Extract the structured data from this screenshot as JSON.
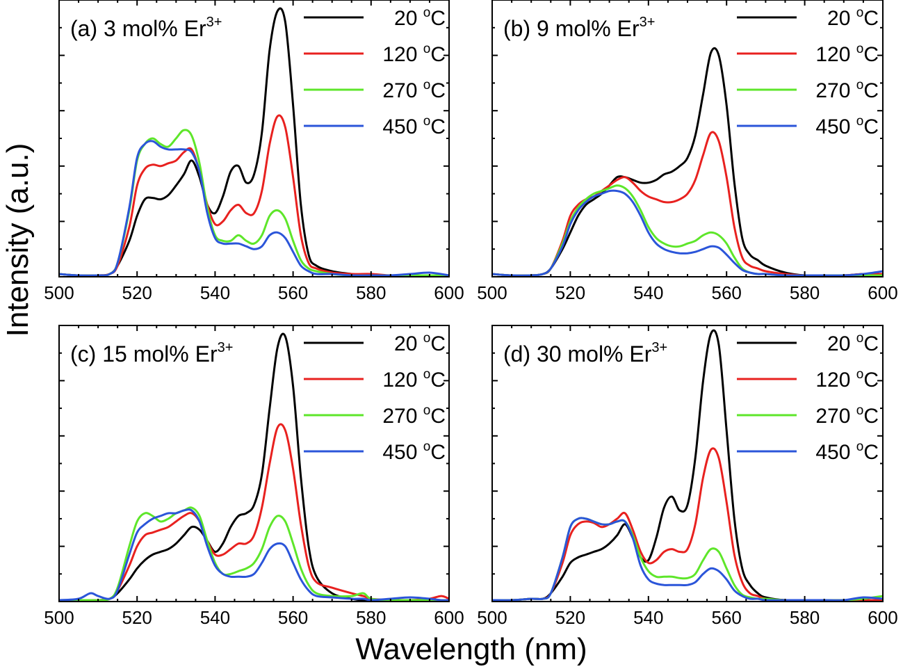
{
  "figure": {
    "xlabel": "Wavelength (nm)",
    "ylabel": "Intensity (a.u.)"
  },
  "series_colors": [
    "#000000",
    "#e8211f",
    "#5ee62a",
    "#2b55d9"
  ],
  "chart_data": [
    {
      "type": "line",
      "title": "(a) 3 mol% Er",
      "title_sup": "3+",
      "xlim": [
        500,
        600
      ],
      "xticks": [
        500,
        520,
        540,
        560,
        580,
        600
      ],
      "x": [
        500,
        505,
        510,
        513,
        515,
        518,
        520,
        522,
        524,
        526,
        528,
        530,
        532,
        534,
        536,
        538,
        540,
        542,
        544,
        546,
        548,
        550,
        552,
        554,
        556,
        558,
        560,
        562,
        564,
        566,
        570,
        575,
        580,
        585,
        590,
        595,
        600
      ],
      "series": [
        {
          "name": "20 °C",
          "values": [
            0.01,
            0.005,
            0.005,
            0.01,
            0.04,
            0.13,
            0.22,
            0.28,
            0.285,
            0.28,
            0.295,
            0.33,
            0.37,
            0.42,
            0.36,
            0.26,
            0.23,
            0.29,
            0.38,
            0.4,
            0.34,
            0.37,
            0.52,
            0.82,
            0.96,
            0.92,
            0.62,
            0.26,
            0.08,
            0.04,
            0.02,
            0.01,
            0.005,
            0.005,
            0.005,
            0.005,
            0.005
          ]
        },
        {
          "name": "120 °C",
          "values": [
            0.01,
            0.005,
            0.005,
            0.01,
            0.04,
            0.18,
            0.33,
            0.39,
            0.405,
            0.4,
            0.41,
            0.42,
            0.45,
            0.46,
            0.38,
            0.26,
            0.19,
            0.2,
            0.24,
            0.26,
            0.23,
            0.23,
            0.31,
            0.48,
            0.58,
            0.54,
            0.36,
            0.15,
            0.05,
            0.03,
            0.015,
            0.01,
            0.01,
            0.005,
            0.005,
            0.005,
            0.005
          ]
        },
        {
          "name": "270 °C",
          "values": [
            0.01,
            0.005,
            0.005,
            0.01,
            0.05,
            0.24,
            0.42,
            0.48,
            0.5,
            0.48,
            0.47,
            0.5,
            0.53,
            0.51,
            0.41,
            0.25,
            0.15,
            0.13,
            0.13,
            0.15,
            0.13,
            0.12,
            0.15,
            0.22,
            0.24,
            0.21,
            0.13,
            0.06,
            0.03,
            0.02,
            0.01,
            0.005,
            0.005,
            0.005,
            0.005,
            0.005,
            0.005
          ]
        },
        {
          "name": "450 °C",
          "values": [
            0.01,
            0.005,
            0.005,
            0.01,
            0.05,
            0.25,
            0.43,
            0.48,
            0.49,
            0.47,
            0.46,
            0.46,
            0.46,
            0.45,
            0.38,
            0.23,
            0.14,
            0.12,
            0.12,
            0.12,
            0.11,
            0.1,
            0.11,
            0.15,
            0.16,
            0.14,
            0.09,
            0.04,
            0.02,
            0.01,
            0.01,
            0.005,
            0.005,
            0.005,
            0.01,
            0.015,
            0.005
          ]
        }
      ]
    },
    {
      "type": "line",
      "title": "(b) 9 mol% Er",
      "title_sup": "3+",
      "xlim": [
        500,
        600
      ],
      "xticks": [
        500,
        520,
        540,
        560,
        580,
        600
      ],
      "x": [
        500,
        505,
        510,
        513,
        515,
        518,
        520,
        522,
        524,
        526,
        528,
        530,
        532,
        534,
        536,
        538,
        540,
        542,
        544,
        546,
        548,
        550,
        552,
        554,
        556,
        558,
        560,
        562,
        564,
        566,
        568,
        570,
        575,
        580,
        585,
        590,
        595,
        600
      ],
      "series": [
        {
          "name": "20 °C",
          "values": [
            0.01,
            0.005,
            0.005,
            0.01,
            0.03,
            0.1,
            0.16,
            0.22,
            0.26,
            0.28,
            0.3,
            0.33,
            0.36,
            0.36,
            0.35,
            0.34,
            0.34,
            0.35,
            0.37,
            0.38,
            0.4,
            0.43,
            0.51,
            0.66,
            0.81,
            0.8,
            0.62,
            0.34,
            0.14,
            0.08,
            0.06,
            0.04,
            0.015,
            0.005,
            0.005,
            0.005,
            0.01,
            0.01
          ]
        },
        {
          "name": "120 °C",
          "values": [
            0.01,
            0.005,
            0.005,
            0.01,
            0.03,
            0.13,
            0.22,
            0.26,
            0.28,
            0.29,
            0.31,
            0.33,
            0.35,
            0.36,
            0.34,
            0.31,
            0.29,
            0.28,
            0.27,
            0.27,
            0.28,
            0.3,
            0.35,
            0.44,
            0.52,
            0.49,
            0.36,
            0.18,
            0.07,
            0.04,
            0.03,
            0.02,
            0.01,
            0.005,
            0.005,
            0.005,
            0.01,
            0.01
          ]
        },
        {
          "name": "270 °C",
          "values": [
            0.01,
            0.005,
            0.005,
            0.01,
            0.03,
            0.12,
            0.2,
            0.25,
            0.28,
            0.3,
            0.31,
            0.32,
            0.33,
            0.32,
            0.29,
            0.24,
            0.18,
            0.14,
            0.12,
            0.11,
            0.11,
            0.12,
            0.13,
            0.15,
            0.16,
            0.15,
            0.12,
            0.07,
            0.03,
            0.015,
            0.01,
            0.01,
            0.005,
            0.005,
            0.005,
            0.005,
            0.005,
            0.005
          ]
        },
        {
          "name": "450 °C",
          "values": [
            0.01,
            0.005,
            0.005,
            0.01,
            0.03,
            0.11,
            0.19,
            0.24,
            0.27,
            0.29,
            0.3,
            0.31,
            0.31,
            0.3,
            0.27,
            0.22,
            0.16,
            0.12,
            0.1,
            0.09,
            0.085,
            0.085,
            0.09,
            0.1,
            0.11,
            0.105,
            0.08,
            0.05,
            0.025,
            0.015,
            0.01,
            0.01,
            0.005,
            0.005,
            0.005,
            0.005,
            0.01,
            0.02
          ]
        }
      ]
    },
    {
      "type": "line",
      "title": "(c) 15 mol% Er",
      "title_sup": "3+",
      "xlim": [
        500,
        600
      ],
      "xticks": [
        500,
        520,
        540,
        560,
        580,
        600
      ],
      "x": [
        500,
        505,
        508,
        510,
        513,
        515,
        518,
        520,
        522,
        524,
        526,
        528,
        530,
        532,
        534,
        536,
        538,
        540,
        542,
        544,
        546,
        548,
        550,
        552,
        554,
        556,
        558,
        560,
        562,
        564,
        566,
        570,
        575,
        578,
        580,
        585,
        590,
        595,
        598,
        600
      ],
      "series": [
        {
          "name": "20 °C",
          "values": [
            0.005,
            0.005,
            0.005,
            0.005,
            0.01,
            0.03,
            0.08,
            0.12,
            0.15,
            0.17,
            0.18,
            0.19,
            0.21,
            0.24,
            0.27,
            0.26,
            0.22,
            0.18,
            0.21,
            0.27,
            0.31,
            0.32,
            0.35,
            0.46,
            0.7,
            0.92,
            0.96,
            0.78,
            0.45,
            0.2,
            0.09,
            0.03,
            0.01,
            0.005,
            0.005,
            0.005,
            0.005,
            0.005,
            0.005,
            0.005
          ]
        },
        {
          "name": "120 °C",
          "values": [
            0.005,
            0.005,
            0.005,
            0.005,
            0.01,
            0.04,
            0.13,
            0.2,
            0.24,
            0.25,
            0.26,
            0.27,
            0.29,
            0.31,
            0.32,
            0.29,
            0.22,
            0.17,
            0.17,
            0.19,
            0.21,
            0.21,
            0.24,
            0.34,
            0.5,
            0.63,
            0.62,
            0.48,
            0.28,
            0.13,
            0.07,
            0.05,
            0.03,
            0.02,
            0.01,
            0.005,
            0.005,
            0.01,
            0.02,
            0.01
          ]
        },
        {
          "name": "270 °C",
          "values": [
            0.005,
            0.005,
            0.005,
            0.005,
            0.01,
            0.05,
            0.2,
            0.29,
            0.32,
            0.31,
            0.29,
            0.3,
            0.32,
            0.33,
            0.34,
            0.31,
            0.22,
            0.14,
            0.1,
            0.1,
            0.11,
            0.12,
            0.14,
            0.19,
            0.27,
            0.31,
            0.29,
            0.21,
            0.12,
            0.06,
            0.03,
            0.02,
            0.02,
            0.03,
            0.01,
            0.005,
            0.005,
            0.005,
            0.005,
            0.005
          ]
        },
        {
          "name": "450 °C",
          "values": [
            0.005,
            0.01,
            0.03,
            0.02,
            0.01,
            0.04,
            0.17,
            0.25,
            0.28,
            0.3,
            0.31,
            0.32,
            0.32,
            0.33,
            0.33,
            0.29,
            0.2,
            0.13,
            0.1,
            0.09,
            0.09,
            0.09,
            0.1,
            0.14,
            0.19,
            0.21,
            0.2,
            0.14,
            0.08,
            0.04,
            0.02,
            0.015,
            0.01,
            0.01,
            0.005,
            0.01,
            0.015,
            0.01,
            0.005,
            0.005
          ]
        }
      ]
    },
    {
      "type": "line",
      "title": "(d) 30 mol% Er",
      "title_sup": "3+",
      "xlim": [
        500,
        600
      ],
      "xticks": [
        500,
        520,
        540,
        560,
        580,
        600
      ],
      "x": [
        500,
        505,
        510,
        513,
        515,
        518,
        520,
        522,
        524,
        526,
        528,
        530,
        532,
        534,
        536,
        538,
        540,
        542,
        544,
        546,
        548,
        550,
        552,
        554,
        556,
        558,
        560,
        562,
        564,
        566,
        568,
        570,
        575,
        580,
        585,
        590,
        595,
        600
      ],
      "series": [
        {
          "name": "20 °C",
          "values": [
            0.005,
            0.005,
            0.01,
            0.01,
            0.03,
            0.09,
            0.14,
            0.16,
            0.17,
            0.18,
            0.19,
            0.21,
            0.24,
            0.28,
            0.23,
            0.16,
            0.15,
            0.23,
            0.34,
            0.38,
            0.33,
            0.35,
            0.52,
            0.8,
            0.97,
            0.93,
            0.62,
            0.3,
            0.12,
            0.06,
            0.03,
            0.015,
            0.005,
            0.005,
            0.005,
            0.005,
            0.005,
            0.005
          ]
        },
        {
          "name": "120 °C",
          "values": [
            0.005,
            0.005,
            0.01,
            0.01,
            0.03,
            0.14,
            0.24,
            0.28,
            0.29,
            0.285,
            0.27,
            0.28,
            0.3,
            0.32,
            0.26,
            0.18,
            0.14,
            0.15,
            0.18,
            0.19,
            0.18,
            0.19,
            0.28,
            0.45,
            0.55,
            0.52,
            0.36,
            0.17,
            0.07,
            0.03,
            0.02,
            0.01,
            0.005,
            0.005,
            0.005,
            0.005,
            0.005,
            0.005
          ]
        },
        {
          "name": "270 °C",
          "values": [
            0.005,
            0.005,
            0.01,
            0.01,
            0.03,
            0.16,
            0.27,
            0.3,
            0.3,
            0.29,
            0.28,
            0.28,
            0.29,
            0.29,
            0.24,
            0.16,
            0.11,
            0.09,
            0.09,
            0.09,
            0.085,
            0.085,
            0.1,
            0.15,
            0.19,
            0.18,
            0.12,
            0.06,
            0.025,
            0.015,
            0.01,
            0.01,
            0.005,
            0.005,
            0.005,
            0.005,
            0.01,
            0.02
          ]
        },
        {
          "name": "450 °C",
          "values": [
            0.005,
            0.005,
            0.01,
            0.01,
            0.03,
            0.16,
            0.27,
            0.3,
            0.3,
            0.29,
            0.28,
            0.28,
            0.29,
            0.29,
            0.23,
            0.13,
            0.08,
            0.065,
            0.06,
            0.06,
            0.06,
            0.06,
            0.07,
            0.1,
            0.12,
            0.11,
            0.08,
            0.04,
            0.02,
            0.01,
            0.01,
            0.005,
            0.005,
            0.005,
            0.005,
            0.005,
            0.015,
            0.01
          ]
        }
      ]
    }
  ]
}
